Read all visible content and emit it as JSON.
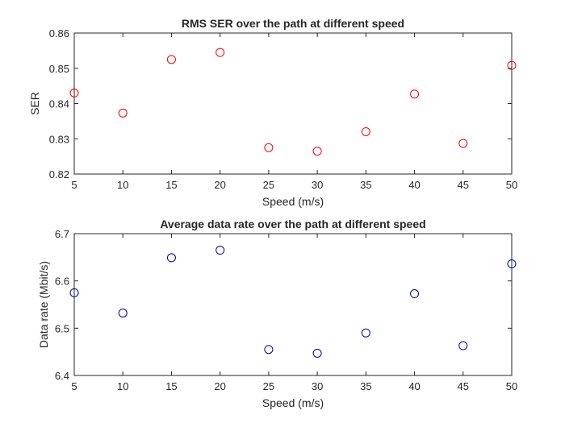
{
  "chart_data": [
    {
      "type": "scatter",
      "title": "RMS SER over the path at different speed",
      "xlabel": "Speed (m/s)",
      "ylabel": "SER",
      "xlim": [
        5,
        50
      ],
      "ylim": [
        0.82,
        0.86
      ],
      "xticks": [
        5,
        10,
        15,
        20,
        25,
        30,
        35,
        40,
        45,
        50
      ],
      "yticks": [
        0.82,
        0.83,
        0.84,
        0.85,
        0.86
      ],
      "ytick_labels": [
        "0.82",
        "0.83",
        "0.84",
        "0.85",
        "0.86"
      ],
      "marker": "circle",
      "marker_color": "#ff0000",
      "grid": false,
      "x": [
        5,
        10,
        15,
        20,
        25,
        30,
        35,
        40,
        45,
        50
      ],
      "y": [
        0.843,
        0.8373,
        0.8525,
        0.8545,
        0.8275,
        0.8265,
        0.832,
        0.8427,
        0.8287,
        0.8508
      ]
    },
    {
      "type": "scatter",
      "title": "Average data rate over the path at different speed",
      "xlabel": "Speed (m/s)",
      "ylabel": "Data rate (Mbit/s)",
      "xlim": [
        5,
        50
      ],
      "ylim": [
        6.4,
        6.7
      ],
      "xticks": [
        5,
        10,
        15,
        20,
        25,
        30,
        35,
        40,
        45,
        50
      ],
      "yticks": [
        6.4,
        6.5,
        6.6,
        6.7
      ],
      "ytick_labels": [
        "6.4",
        "6.5",
        "6.6",
        "6.7"
      ],
      "marker": "circle",
      "marker_color": "#0000aa",
      "grid": false,
      "x": [
        5,
        10,
        15,
        20,
        25,
        30,
        35,
        40,
        45,
        50
      ],
      "y": [
        6.575,
        6.532,
        6.649,
        6.665,
        6.455,
        6.447,
        6.49,
        6.573,
        6.463,
        6.636
      ]
    }
  ]
}
